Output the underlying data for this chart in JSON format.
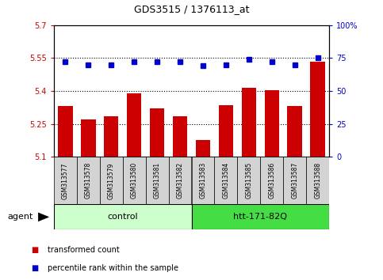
{
  "title": "GDS3515 / 1376113_at",
  "samples": [
    "GSM313577",
    "GSM313578",
    "GSM313579",
    "GSM313580",
    "GSM313581",
    "GSM313582",
    "GSM313583",
    "GSM313584",
    "GSM313585",
    "GSM313586",
    "GSM313587",
    "GSM313588"
  ],
  "bar_values": [
    5.33,
    5.27,
    5.285,
    5.39,
    5.32,
    5.285,
    5.175,
    5.335,
    5.415,
    5.405,
    5.33,
    5.535
  ],
  "percentile_values": [
    72,
    70,
    70,
    72,
    72,
    72,
    69,
    70,
    74,
    72,
    70,
    75
  ],
  "bar_color": "#cc0000",
  "percentile_color": "#0000cc",
  "ylim_left": [
    5.1,
    5.7
  ],
  "ylim_right": [
    0,
    100
  ],
  "yticks_left": [
    5.1,
    5.25,
    5.4,
    5.55,
    5.7
  ],
  "yticks_right": [
    0,
    25,
    50,
    75,
    100
  ],
  "ytick_labels_left": [
    "5.1",
    "5.25",
    "5.4",
    "5.55",
    "5.7"
  ],
  "ytick_labels_right": [
    "0",
    "25",
    "50",
    "75",
    "100%"
  ],
  "grid_values": [
    5.25,
    5.4,
    5.55
  ],
  "groups": [
    {
      "label": "control",
      "start": 0,
      "end": 5,
      "color": "#ccffcc"
    },
    {
      "label": "htt-171-82Q",
      "start": 6,
      "end": 11,
      "color": "#44dd44"
    }
  ],
  "agent_label": "agent",
  "legend_items": [
    {
      "label": "transformed count",
      "color": "#cc0000"
    },
    {
      "label": "percentile rank within the sample",
      "color": "#0000cc"
    }
  ],
  "bar_width": 0.65,
  "background_color": "#ffffff"
}
